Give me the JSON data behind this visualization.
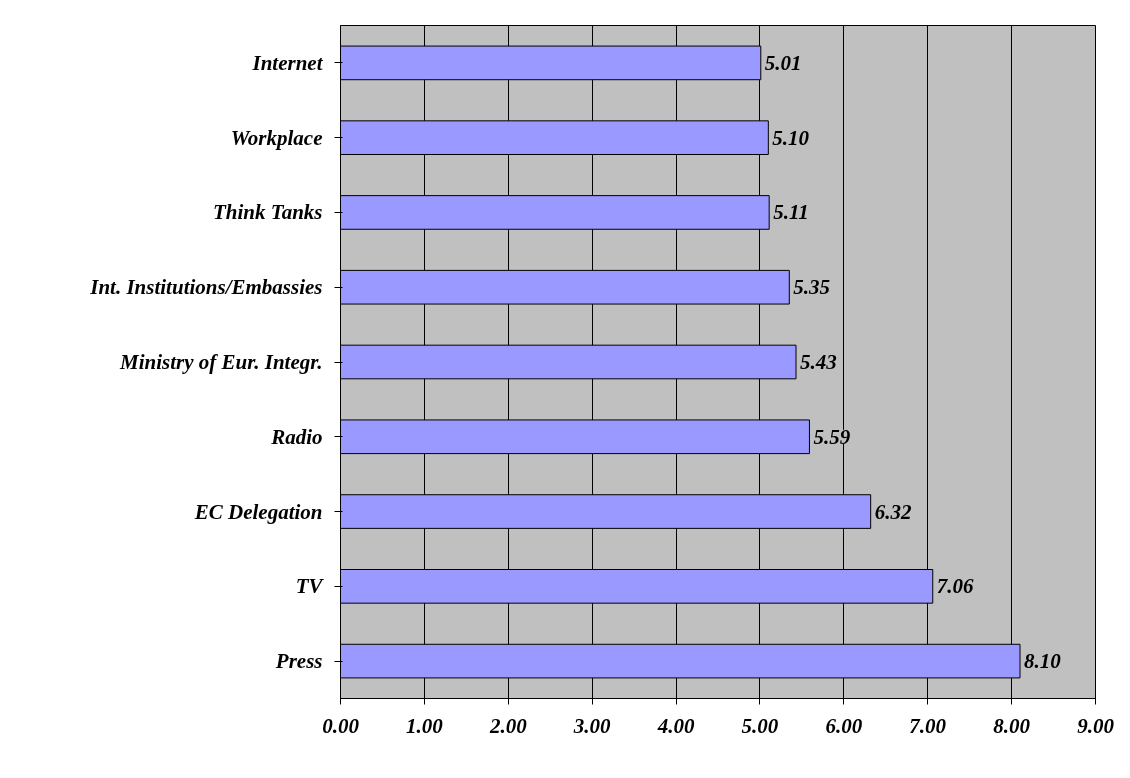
{
  "chart_data": {
    "type": "bar",
    "orientation": "horizontal",
    "categories": [
      "Internet",
      "Workplace",
      "Think Tanks",
      "Int. Institutions/Embassies",
      "Ministry of Eur. Integr.",
      "Radio",
      "EC Delegation",
      "TV",
      "Press"
    ],
    "values": [
      5.01,
      5.1,
      5.11,
      5.35,
      5.43,
      5.59,
      6.32,
      7.06,
      8.1
    ],
    "value_labels": [
      "5.01",
      "5.10",
      "5.11",
      "5.35",
      "5.43",
      "5.59",
      "6.32",
      "7.06",
      "8.10"
    ],
    "color": "#9999ff",
    "xlim": [
      0,
      9
    ],
    "xticks": [
      {
        "value": 0,
        "label": "0.00"
      },
      {
        "value": 1,
        "label": "1.00"
      },
      {
        "value": 2,
        "label": "2.00"
      },
      {
        "value": 3,
        "label": "3.00"
      },
      {
        "value": 4,
        "label": "4.00"
      },
      {
        "value": 5,
        "label": "5.00"
      },
      {
        "value": 6,
        "label": "6.00"
      },
      {
        "value": 7,
        "label": "7.00"
      },
      {
        "value": 8,
        "label": "8.00"
      },
      {
        "value": 9,
        "label": "9.00"
      }
    ],
    "grid": "x"
  }
}
